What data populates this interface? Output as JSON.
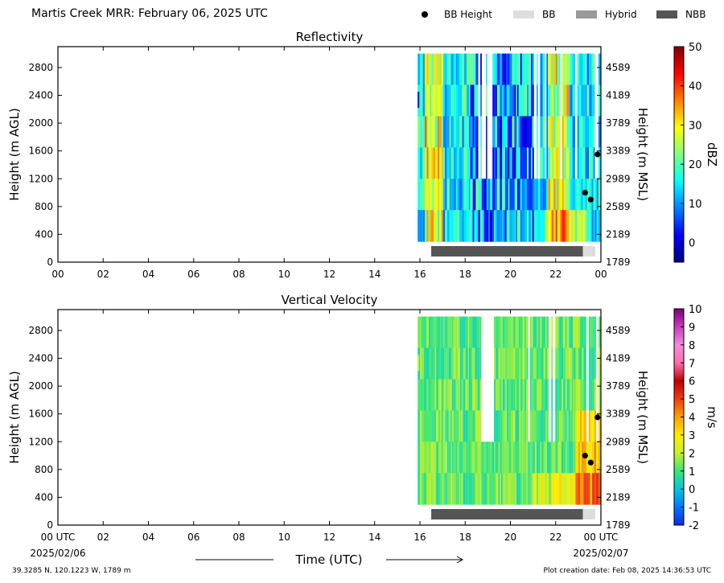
{
  "header": {
    "title": "Martis Creek MRR:  February 06, 2025 UTC"
  },
  "legend": [
    {
      "label": "BB Height",
      "marker": "dot",
      "color": "#000000"
    },
    {
      "label": "BB",
      "marker": "bar",
      "color": "#dddddd"
    },
    {
      "label": "Hybrid",
      "marker": "bar",
      "color": "#999999"
    },
    {
      "label": "NBB",
      "marker": "bar",
      "color": "#555555"
    }
  ],
  "footer": {
    "location": "39.3285 N, 120.1223 W, 1789 m",
    "created": "Plot creation date: Feb 08, 2025 14:36:53 UTC"
  },
  "xaxis": {
    "label": "Time (UTC)",
    "ticks": [
      "00",
      "02",
      "04",
      "06",
      "08",
      "10",
      "12",
      "14",
      "16",
      "18",
      "20",
      "22",
      "00"
    ],
    "bottom_ticks": [
      "00 UTC",
      "02",
      "04",
      "06",
      "08",
      "10",
      "12",
      "14",
      "16",
      "18",
      "20",
      "22",
      "00 UTC"
    ],
    "start_date": "2025/02/06",
    "end_date": "2025/02/07"
  },
  "chart_data": [
    {
      "type": "heatmap",
      "title": "Reflectivity",
      "ylabel": "Height (m AGL)",
      "ylabel_right": "Height (m MSL)",
      "yticks": [
        0,
        400,
        800,
        1200,
        1600,
        2000,
        2400,
        2800
      ],
      "yticks_right": [
        1789,
        2189,
        2589,
        2989,
        3389,
        3789,
        4189,
        4589
      ],
      "ylim": [
        0,
        3100
      ],
      "xlim": [
        0,
        24
      ],
      "data_extent_hours": [
        15.9,
        23.95
      ],
      "colorbar": {
        "label": "dBZ",
        "range": [
          -5,
          50
        ],
        "ticks": [
          0,
          10,
          20,
          30,
          40,
          50
        ],
        "colormap": "jet"
      },
      "bb_height_points": [
        {
          "x": 23.3,
          "y": 1000
        },
        {
          "x": 23.55,
          "y": 900
        },
        {
          "x": 23.85,
          "y": 1550
        }
      ],
      "bb_type_bar": [
        {
          "type": "NBB",
          "start": 16.5,
          "end": 23.2
        },
        {
          "type": "BB",
          "start": 23.2,
          "end": 23.75
        }
      ]
    },
    {
      "type": "heatmap",
      "title": "Vertical Velocity",
      "ylabel": "Height (m AGL)",
      "ylabel_right": "Height (m MSL)",
      "yticks": [
        0,
        400,
        800,
        1200,
        1600,
        2000,
        2400,
        2800
      ],
      "yticks_right": [
        1789,
        2189,
        2589,
        2989,
        3389,
        3789,
        4189,
        4589
      ],
      "ylim": [
        0,
        3100
      ],
      "xlim": [
        0,
        24
      ],
      "data_extent_hours": [
        15.9,
        24.0
      ],
      "colorbar": {
        "label": "m/s",
        "range": [
          -2,
          10
        ],
        "ticks": [
          -2,
          -1,
          0,
          1,
          2,
          3,
          4,
          5,
          6,
          7,
          8,
          9,
          10
        ],
        "colormap": "velocity"
      },
      "bb_height_points": [
        {
          "x": 23.3,
          "y": 1000
        },
        {
          "x": 23.55,
          "y": 900
        },
        {
          "x": 23.85,
          "y": 1550
        }
      ],
      "bb_type_bar": [
        {
          "type": "NBB",
          "start": 16.5,
          "end": 23.2
        },
        {
          "type": "BB",
          "start": 23.2,
          "end": 23.75
        }
      ]
    }
  ]
}
